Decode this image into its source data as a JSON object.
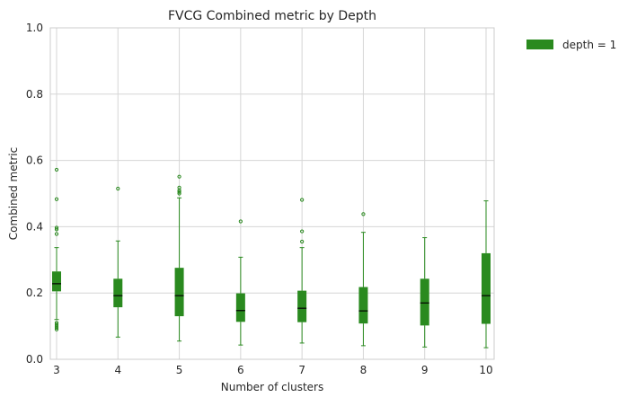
{
  "chart_data": {
    "type": "box",
    "title": "FVCG Combined metric by Depth",
    "xlabel": "Number of clusters",
    "ylabel": "Combined metric",
    "ylim": [
      0,
      1
    ],
    "yticks": [
      0.0,
      0.2,
      0.4,
      0.6,
      0.8,
      1.0
    ],
    "ytick_labels": [
      "0.0",
      "0.2",
      "0.4",
      "0.6",
      "0.8",
      "1.0"
    ],
    "categories": [
      "3",
      "4",
      "5",
      "6",
      "7",
      "8",
      "9",
      "10"
    ],
    "grid": true,
    "legend_position": "outside-top-right",
    "series": [
      {
        "name": "depth = 1",
        "color": "#2a8a1f",
        "median_color": "#000000",
        "boxes": [
          {
            "category": "3",
            "whisker_low": 0.12,
            "q1": 0.205,
            "median": 0.228,
            "q3": 0.265,
            "whisker_high": 0.337,
            "outliers": [
              0.09,
              0.095,
              0.1,
              0.105,
              0.11,
              0.378,
              0.392,
              0.397,
              0.483,
              0.572
            ]
          },
          {
            "category": "4",
            "whisker_low": 0.067,
            "q1": 0.157,
            "median": 0.192,
            "q3": 0.243,
            "whisker_high": 0.357,
            "outliers": [
              0.515
            ]
          },
          {
            "category": "5",
            "whisker_low": 0.055,
            "q1": 0.13,
            "median": 0.192,
            "q3": 0.276,
            "whisker_high": 0.487,
            "outliers": [
              0.5,
              0.505,
              0.51,
              0.518,
              0.551
            ]
          },
          {
            "category": "6",
            "whisker_low": 0.043,
            "q1": 0.113,
            "median": 0.147,
            "q3": 0.199,
            "whisker_high": 0.308,
            "outliers": [
              0.416
            ]
          },
          {
            "category": "7",
            "whisker_low": 0.049,
            "q1": 0.112,
            "median": 0.154,
            "q3": 0.207,
            "whisker_high": 0.337,
            "outliers": [
              0.355,
              0.386,
              0.481
            ]
          },
          {
            "category": "8",
            "whisker_low": 0.041,
            "q1": 0.108,
            "median": 0.146,
            "q3": 0.218,
            "whisker_high": 0.383,
            "outliers": [
              0.438
            ]
          },
          {
            "category": "9",
            "whisker_low": 0.037,
            "q1": 0.102,
            "median": 0.17,
            "q3": 0.243,
            "whisker_high": 0.367,
            "outliers": []
          },
          {
            "category": "10",
            "whisker_low": 0.035,
            "q1": 0.107,
            "median": 0.192,
            "q3": 0.32,
            "whisker_high": 0.478,
            "outliers": []
          }
        ]
      }
    ]
  }
}
